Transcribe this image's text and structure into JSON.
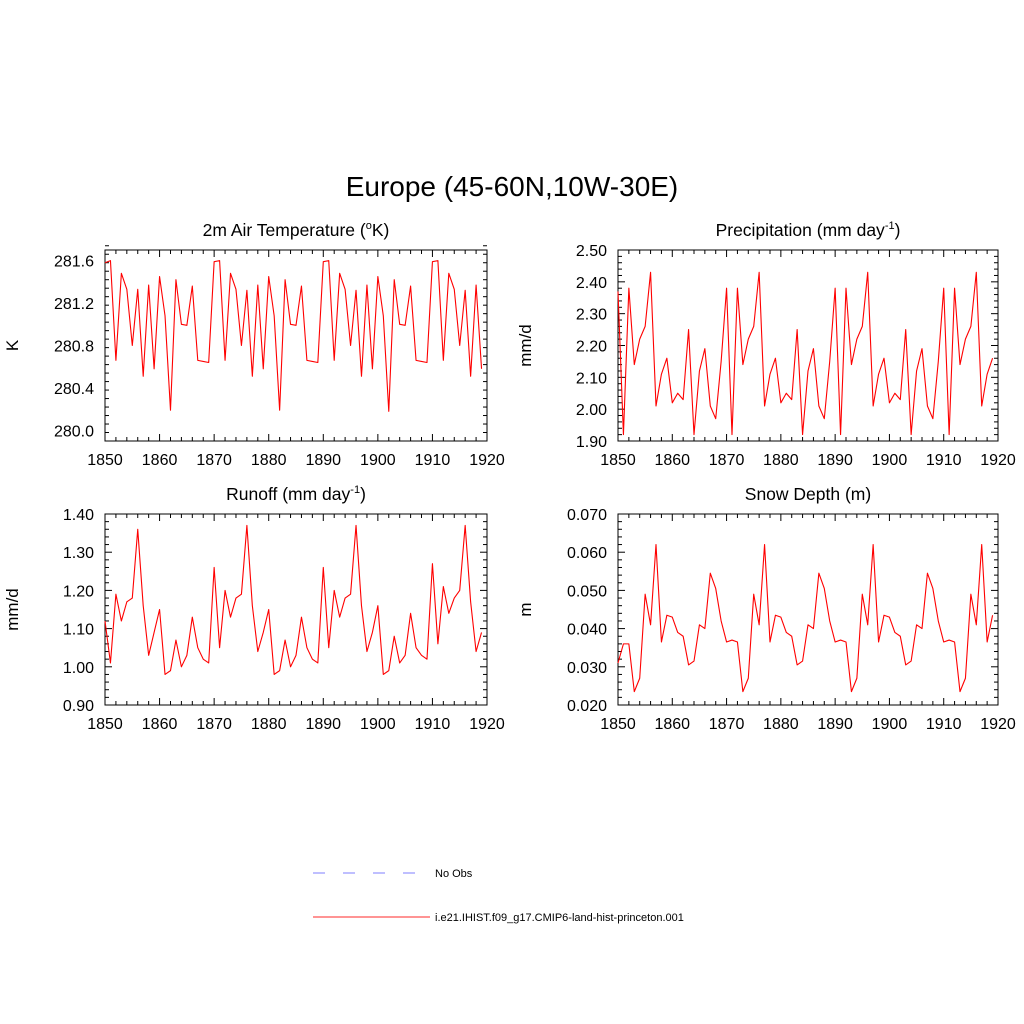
{
  "figure": {
    "title": "Europe (45-60N,10W-30E)"
  },
  "legend": {
    "items": [
      {
        "label": "No Obs",
        "color": "#9999ff",
        "dash": "dashed"
      },
      {
        "label": "i.e21.IHIST.f09_g17.CMIP6-land-hist-princeton.001",
        "color": "#ff5555",
        "dash": "solid"
      }
    ]
  },
  "line_color": "#ff0000",
  "chart_data": [
    {
      "type": "line",
      "title_main": "2m Air Temperature (",
      "title_sup": "o",
      "title_tail": "K)",
      "ylabel": "K",
      "xlim": [
        1850,
        1920
      ],
      "ylim": [
        279.9,
        281.7
      ],
      "xticks": [
        1850,
        1860,
        1870,
        1880,
        1890,
        1900,
        1910,
        1920
      ],
      "yticks": [
        280.0,
        280.4,
        280.8,
        281.2,
        281.6
      ],
      "ytick_labels": [
        "280.0",
        "280.4",
        "280.8",
        "281.2",
        "281.6"
      ],
      "x_start": 1850,
      "series": [
        {
          "values": [
            281.58,
            281.6,
            280.66,
            281.48,
            281.33,
            280.8,
            281.33,
            280.51,
            281.37,
            280.58,
            281.45,
            281.08,
            280.19,
            281.42,
            281.0,
            280.99,
            281.36,
            280.66,
            280.65,
            280.64,
            281.59,
            281.6,
            280.66,
            281.48,
            281.33,
            280.8,
            281.32,
            280.51,
            281.37,
            280.58,
            281.45,
            281.08,
            280.19,
            281.42,
            281.0,
            280.99,
            281.36,
            280.66,
            280.65,
            280.64,
            281.59,
            281.6,
            280.66,
            281.48,
            281.33,
            280.8,
            281.32,
            280.51,
            281.37,
            280.58,
            281.45,
            281.08,
            280.18,
            281.42,
            281.0,
            280.99,
            281.36,
            280.66,
            280.65,
            280.64,
            281.59,
            281.6,
            280.66,
            281.48,
            281.33,
            280.8,
            281.32,
            280.51,
            281.37,
            280.58
          ]
        }
      ]
    },
    {
      "type": "line",
      "title_main": "Precipitation (mm day",
      "title_sup": "-1",
      "title_tail": ")",
      "ylabel": "mm/d",
      "xlim": [
        1850,
        1920
      ],
      "ylim": [
        1.9,
        2.5
      ],
      "xticks": [
        1850,
        1860,
        1870,
        1880,
        1890,
        1900,
        1910,
        1920
      ],
      "yticks": [
        1.9,
        2.0,
        2.1,
        2.2,
        2.3,
        2.4,
        2.5
      ],
      "ytick_labels": [
        "1.90",
        "2.00",
        "2.10",
        "2.20",
        "2.30",
        "2.40",
        "2.50"
      ],
      "x_start": 1850,
      "series": [
        {
          "values": [
            2.37,
            1.92,
            2.38,
            2.14,
            2.22,
            2.26,
            2.43,
            2.01,
            2.11,
            2.16,
            2.02,
            2.05,
            2.03,
            2.25,
            1.92,
            2.12,
            2.19,
            2.01,
            1.97,
            2.15,
            2.38,
            1.92,
            2.38,
            2.14,
            2.22,
            2.26,
            2.43,
            2.01,
            2.11,
            2.16,
            2.02,
            2.05,
            2.03,
            2.25,
            1.92,
            2.12,
            2.19,
            2.01,
            1.97,
            2.15,
            2.38,
            1.92,
            2.38,
            2.14,
            2.22,
            2.26,
            2.43,
            2.01,
            2.11,
            2.16,
            2.02,
            2.05,
            2.03,
            2.25,
            1.92,
            2.12,
            2.19,
            2.01,
            1.97,
            2.15,
            2.38,
            1.92,
            2.38,
            2.14,
            2.22,
            2.26,
            2.43,
            2.01,
            2.11,
            2.16
          ]
        }
      ]
    },
    {
      "type": "line",
      "title_main": "Runoff (mm day",
      "title_sup": "-1",
      "title_tail": ")",
      "ylabel": "mm/d",
      "xlim": [
        1850,
        1920
      ],
      "ylim": [
        0.9,
        1.4
      ],
      "xticks": [
        1850,
        1860,
        1870,
        1880,
        1890,
        1900,
        1910,
        1920
      ],
      "yticks": [
        0.9,
        1.0,
        1.1,
        1.2,
        1.3,
        1.4
      ],
      "ytick_labels": [
        "0.90",
        "1.00",
        "1.10",
        "1.20",
        "1.30",
        "1.40"
      ],
      "x_start": 1850,
      "series": [
        {
          "values": [
            1.12,
            1.01,
            1.19,
            1.12,
            1.17,
            1.18,
            1.36,
            1.16,
            1.03,
            1.09,
            1.15,
            0.98,
            0.99,
            1.07,
            1.0,
            1.03,
            1.13,
            1.05,
            1.02,
            1.01,
            1.26,
            1.05,
            1.2,
            1.13,
            1.18,
            1.19,
            1.37,
            1.16,
            1.04,
            1.09,
            1.15,
            0.98,
            0.99,
            1.07,
            1.0,
            1.03,
            1.13,
            1.05,
            1.02,
            1.01,
            1.26,
            1.05,
            1.2,
            1.13,
            1.18,
            1.19,
            1.37,
            1.16,
            1.04,
            1.09,
            1.16,
            0.98,
            0.99,
            1.08,
            1.01,
            1.03,
            1.14,
            1.05,
            1.03,
            1.02,
            1.27,
            1.06,
            1.21,
            1.14,
            1.18,
            1.2,
            1.37,
            1.17,
            1.04,
            1.09
          ]
        }
      ]
    },
    {
      "type": "line",
      "title_main": "Snow Depth (m)",
      "title_sup": "",
      "title_tail": "",
      "ylabel": "m",
      "xlim": [
        1850,
        1920
      ],
      "ylim": [
        0.02,
        0.07
      ],
      "xticks": [
        1850,
        1860,
        1870,
        1880,
        1890,
        1900,
        1910,
        1920
      ],
      "yticks": [
        0.02,
        0.03,
        0.04,
        0.05,
        0.06,
        0.07
      ],
      "ytick_labels": [
        "0.020",
        "0.030",
        "0.040",
        "0.050",
        "0.060",
        "0.070"
      ],
      "x_start": 1850,
      "series": [
        {
          "values": [
            0.031,
            0.036,
            0.036,
            0.0235,
            0.027,
            0.049,
            0.041,
            0.062,
            0.0365,
            0.0435,
            0.043,
            0.039,
            0.038,
            0.0305,
            0.0315,
            0.041,
            0.04,
            0.0545,
            0.0505,
            0.042,
            0.0365,
            0.037,
            0.0365,
            0.0235,
            0.027,
            0.049,
            0.041,
            0.062,
            0.0365,
            0.0435,
            0.043,
            0.039,
            0.038,
            0.0305,
            0.0315,
            0.041,
            0.04,
            0.0545,
            0.0505,
            0.042,
            0.0365,
            0.037,
            0.0365,
            0.0235,
            0.027,
            0.049,
            0.041,
            0.062,
            0.0365,
            0.0435,
            0.043,
            0.039,
            0.038,
            0.0305,
            0.0315,
            0.041,
            0.04,
            0.0545,
            0.0505,
            0.042,
            0.0365,
            0.037,
            0.0365,
            0.0235,
            0.027,
            0.049,
            0.041,
            0.062,
            0.0365,
            0.0435
          ]
        }
      ]
    }
  ]
}
